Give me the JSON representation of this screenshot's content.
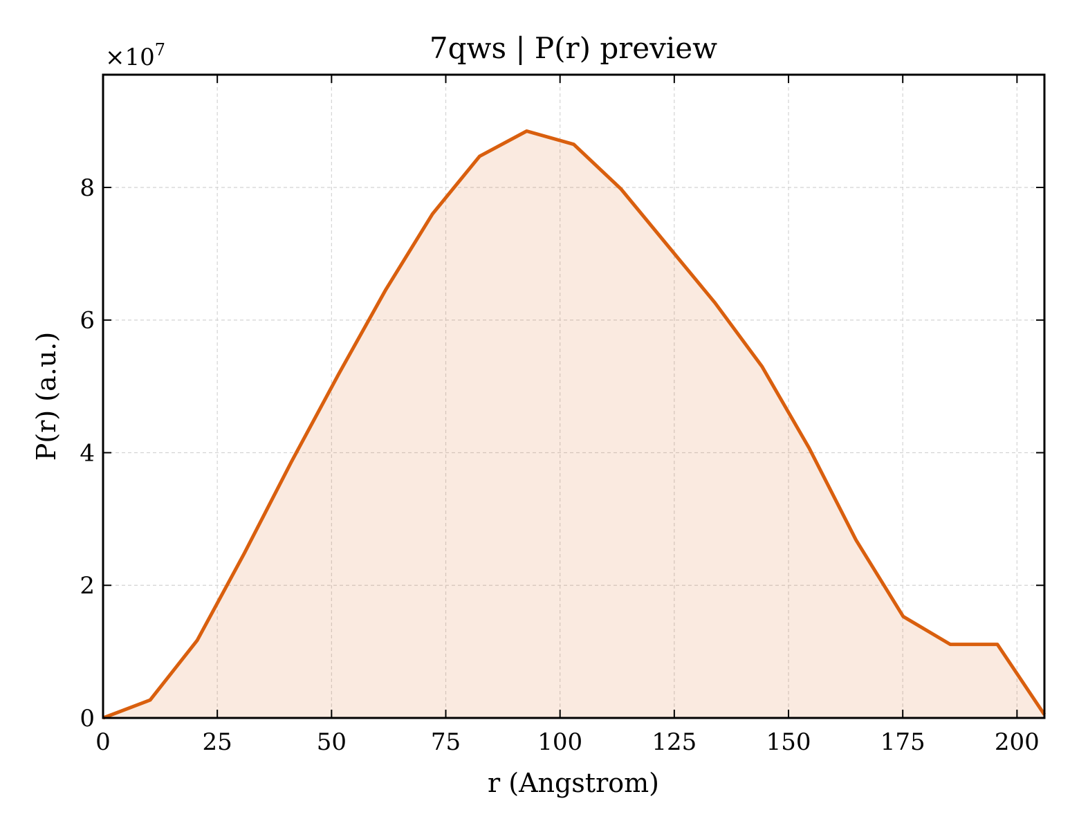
{
  "chart_data": {
    "type": "area",
    "title": "7qws | P(r) preview",
    "xlabel": "r (Angstrom)",
    "ylabel": "P(r) (a.u.)",
    "y_scale_label": "×10",
    "y_scale_exponent": "7",
    "xlim": [
      0,
      206
    ],
    "ylim": [
      0,
      9.7
    ],
    "x_ticks": [
      0,
      25,
      50,
      75,
      100,
      125,
      150,
      175,
      200
    ],
    "y_ticks": [
      0,
      2,
      4,
      6,
      8
    ],
    "grid": true,
    "tick_direction": "in",
    "series": [
      {
        "x": [
          0,
          10.3,
          20.6,
          30.9,
          41.2,
          51.5,
          61.8,
          72.1,
          82.4,
          92.7,
          103.0,
          113.3,
          123.6,
          133.9,
          144.2,
          154.5,
          164.8,
          175.1,
          185.4,
          195.7,
          206.0
        ],
        "values": [
          0.0,
          0.27,
          1.17,
          2.48,
          3.86,
          5.18,
          6.45,
          7.6,
          8.47,
          8.85,
          8.65,
          7.98,
          7.12,
          6.26,
          5.3,
          4.07,
          2.68,
          1.53,
          1.11,
          1.11,
          0.05
        ],
        "color": "#d95f0e",
        "fill_color": "#d95f0e",
        "fill_opacity": 0.13
      }
    ]
  }
}
